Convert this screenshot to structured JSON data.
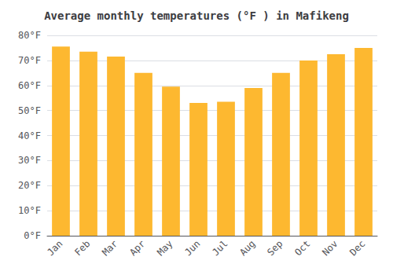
{
  "chart_data": {
    "type": "bar",
    "title": "Average monthly temperatures (°F ) in Mafikeng",
    "categories": [
      "Jan",
      "Feb",
      "Mar",
      "Apr",
      "May",
      "Jun",
      "Jul",
      "Aug",
      "Sep",
      "Oct",
      "Nov",
      "Dec"
    ],
    "values": [
      75.5,
      73.5,
      71.5,
      65,
      59.5,
      53,
      53.5,
      59,
      65,
      70,
      72.5,
      75
    ],
    "color": "#FDB830",
    "ylim": [
      0,
      80
    ],
    "yticks": [
      {
        "value": 0,
        "label": "0°F"
      },
      {
        "value": 10,
        "label": "10°F"
      },
      {
        "value": 20,
        "label": "20°F"
      },
      {
        "value": 30,
        "label": "30°F"
      },
      {
        "value": 40,
        "label": "40°F"
      },
      {
        "value": 50,
        "label": "50°F"
      },
      {
        "value": 60,
        "label": "60°F"
      },
      {
        "value": 70,
        "label": "70°F"
      },
      {
        "value": 80,
        "label": "80°F"
      }
    ],
    "grid": true
  }
}
